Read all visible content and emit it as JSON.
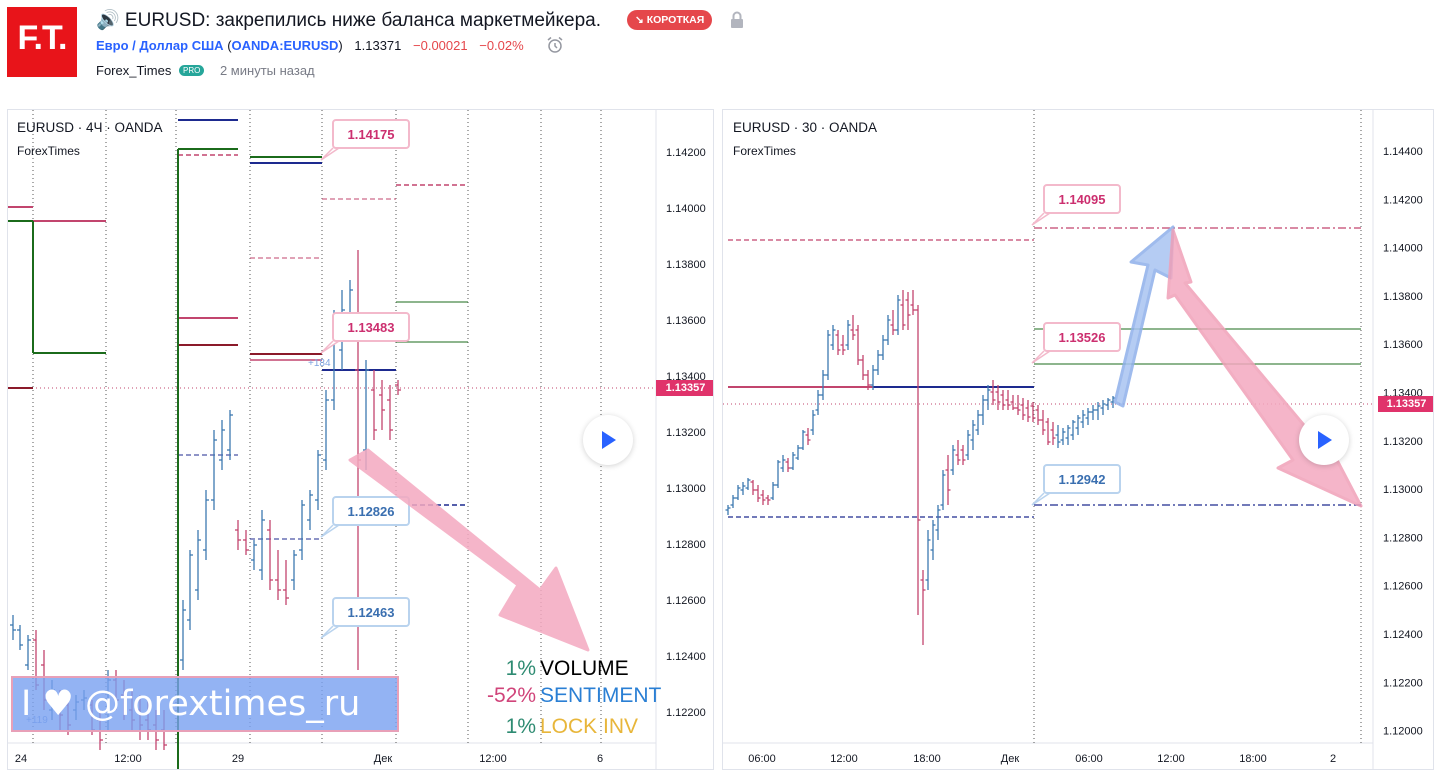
{
  "header": {
    "title": "🔊 EURUSD: закрепились ниже баланса маркетмейкера.",
    "badge": "↘ КОРОТКАЯ",
    "pair": "Евро / Доллар США",
    "exchange_open": "(",
    "exchange": "OANDA:EURUSD",
    "exchange_close": ")",
    "price": "1.13371",
    "change": "−0.00021",
    "change_pct": "−0.02%",
    "author": "Forex_Times",
    "author_badge": "PRO",
    "time_ago": "2 минуты назад",
    "logo_text": "F.T."
  },
  "colors": {
    "logo_red": "#e8141a",
    "bull": "#3d78b0",
    "bear": "#c2456e",
    "pink_label": "#cc2f6f",
    "blue_label": "#3a6fb0",
    "green_line": "#1b6b1b",
    "navy_line": "#1d2a8f",
    "price_tag": "#e0336b"
  },
  "left_chart": {
    "title": "EURUSD · 4Ч · OANDA",
    "subtitle": "ForexTimes",
    "y_ticks": [
      "1.14200",
      "1.14000",
      "1.13800",
      "1.13600",
      "1.13400",
      "1.13200",
      "1.13000",
      "1.12800",
      "1.12600",
      "1.12400",
      "1.12200"
    ],
    "x_ticks": [
      "24",
      "12:00",
      "29",
      "Дек",
      "12:00",
      "6"
    ],
    "price_tag": "1.13357",
    "labels": [
      "1.14175",
      "1.13483",
      "1.12826",
      "1.12463"
    ],
    "small_note_1": "+184",
    "small_note_2": "+119",
    "stats": [
      {
        "value": "1%",
        "name": "VOLUME",
        "value_color": "#2e8b72",
        "name_color": "#000000"
      },
      {
        "value": "-52%",
        "name": "SENTIMENT",
        "value_color": "#d0447a",
        "name_color": "#2a7fd4"
      },
      {
        "value": "1%",
        "name": "LOCK INV",
        "value_color": "#2e8b72",
        "name_color": "#e8b63a"
      }
    ],
    "banner": "I ♥ @forextimes_ru"
  },
  "right_chart": {
    "title": "EURUSD · 30 · OANDA",
    "subtitle": "ForexTimes",
    "y_ticks": [
      "1.14400",
      "1.14200",
      "1.14000",
      "1.13800",
      "1.13600",
      "1.13400",
      "1.13200",
      "1.13000",
      "1.12800",
      "1.12600",
      "1.12400",
      "1.12200",
      "1.12000"
    ],
    "x_ticks": [
      "06:00",
      "12:00",
      "18:00",
      "Дек",
      "06:00",
      "12:00",
      "18:00",
      "2"
    ],
    "price_tag": "1.13357",
    "labels": [
      "1.14095",
      "1.13526",
      "1.12942"
    ]
  }
}
